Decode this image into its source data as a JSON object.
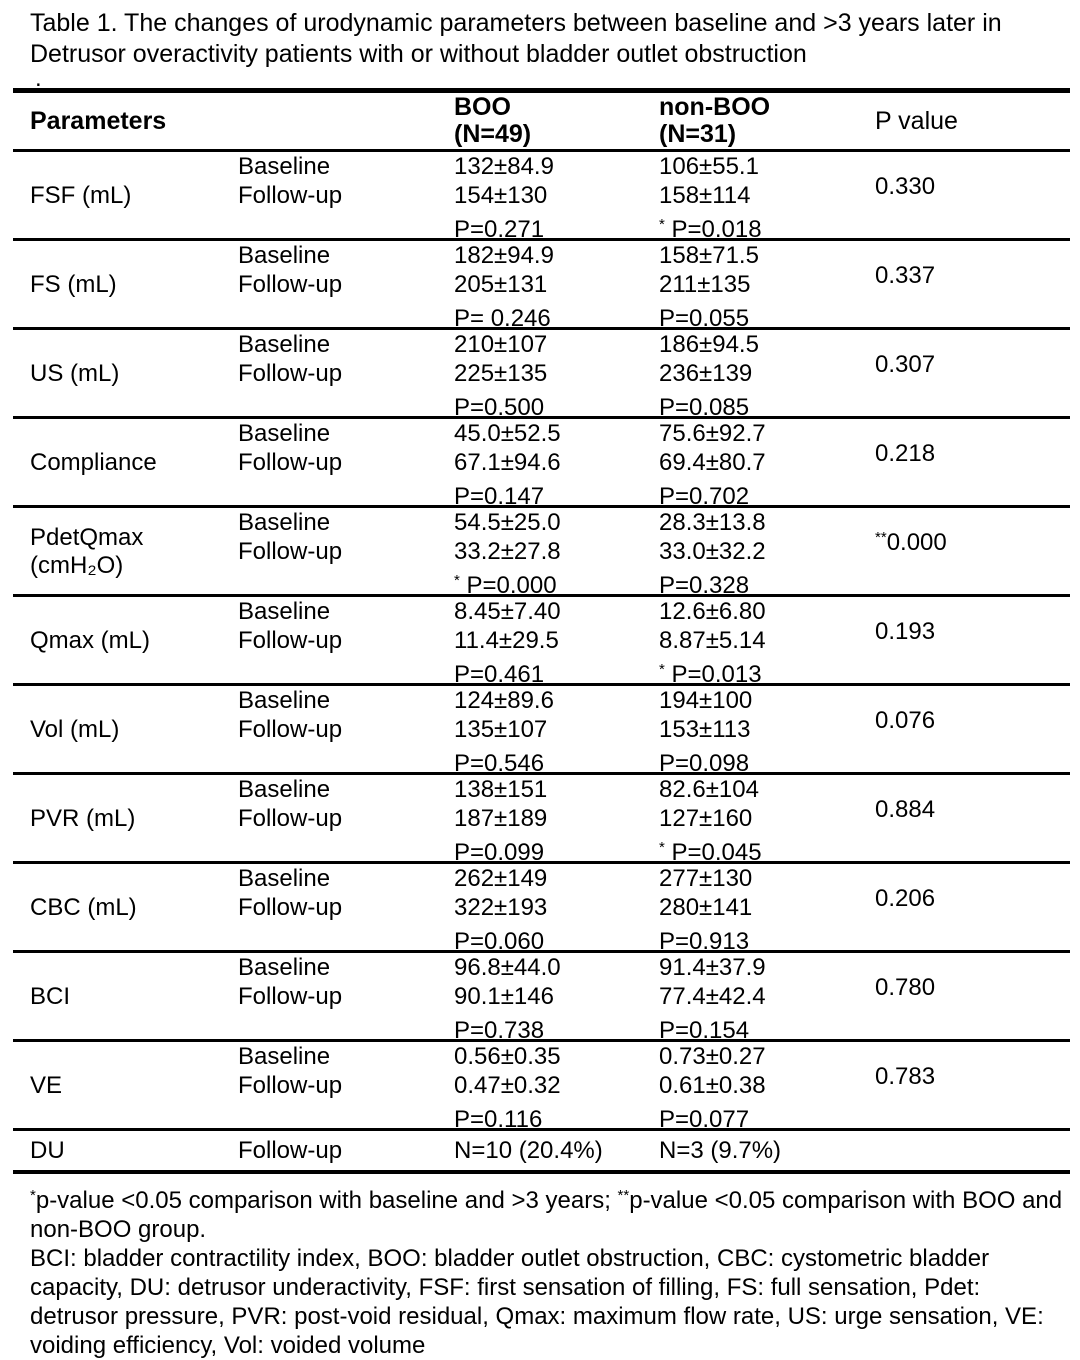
{
  "colors": {
    "text": "#000000",
    "background": "#ffffff"
  },
  "title": {
    "line1": "Table 1. The changes of urodynamic parameters between baseline and >3 years later in",
    "line2": "Detrusor overactivity patients with or without bladder outlet obstruction"
  },
  "misc": {
    "dot": "."
  },
  "table": {
    "header": {
      "parameters": "Parameters",
      "boo1": "BOO",
      "boo2": "(N=49)",
      "nonboo1": "non-BOO",
      "nonboo2": "(N=31)",
      "p": "P value"
    },
    "rows": [
      {
        "param1": "FSF (mL)",
        "param2": "",
        "visit1": "Baseline",
        "visit2": "Follow-up",
        "boo": {
          "l1": "132±84.9",
          "l2": "154±130",
          "psup": "",
          "p": "P=0.271"
        },
        "nonboo": {
          "l1": "106±55.1",
          "l2": "158±114",
          "psup": "*",
          "p": " P=0.018"
        },
        "psup": "",
        "p": "0.330"
      },
      {
        "param1": "FS (mL)",
        "param2": "",
        "visit1": "Baseline",
        "visit2": "Follow-up",
        "boo": {
          "l1": "182±94.9",
          "l2": "205±131",
          "psup": "",
          "p": "P= 0.246"
        },
        "nonboo": {
          "l1": "158±71.5",
          "l2": "211±135",
          "psup": "",
          "p": "P=0.055"
        },
        "psup": "",
        "p": "0.337"
      },
      {
        "param1": "US (mL)",
        "param2": "",
        "visit1": "Baseline",
        "visit2": "Follow-up",
        "boo": {
          "l1": "210±107",
          "l2": "225±135",
          "psup": "",
          "p": "P=0.500"
        },
        "nonboo": {
          "l1": "186±94.5",
          "l2": "236±139",
          "psup": "",
          "p": "P=0.085"
        },
        "psup": "",
        "p": "0.307"
      },
      {
        "param1": "Compliance",
        "param2": "",
        "visit1": "Baseline",
        "visit2": "Follow-up",
        "boo": {
          "l1": "45.0±52.5",
          "l2": "67.1±94.6",
          "psup": "",
          "p": "P=0.147"
        },
        "nonboo": {
          "l1": "75.6±92.7",
          "l2": "69.4±80.7",
          "psup": "",
          "p": "P=0.702"
        },
        "psup": "",
        "p": "0.218"
      },
      {
        "param1": "PdetQmax",
        "param2": "(cmH₂O)",
        "visit1": "Baseline",
        "visit2": "Follow-up",
        "boo": {
          "l1": "54.5±25.0",
          "l2": "33.2±27.8",
          "psup": "*",
          "p": " P=0.000"
        },
        "nonboo": {
          "l1": "28.3±13.8",
          "l2": "33.0±32.2",
          "psup": "",
          "p": "P=0.328"
        },
        "psup": "**",
        "p": "0.000"
      },
      {
        "param1": "Qmax (mL)",
        "param2": "",
        "visit1": "Baseline",
        "visit2": "Follow-up",
        "boo": {
          "l1": "8.45±7.40",
          "l2": "11.4±29.5",
          "psup": "",
          "p": "P=0.461"
        },
        "nonboo": {
          "l1": "12.6±6.80",
          "l2": "8.87±5.14",
          "psup": "*",
          "p": " P=0.013"
        },
        "psup": "",
        "p": "0.193"
      },
      {
        "param1": "Vol (mL)",
        "param2": "",
        "visit1": "Baseline",
        "visit2": "Follow-up",
        "boo": {
          "l1": "124±89.6",
          "l2": "135±107",
          "psup": "",
          "p": "P=0.546"
        },
        "nonboo": {
          "l1": "194±100",
          "l2": "153±113",
          "psup": "",
          "p": "P=0.098"
        },
        "psup": "",
        "p": "0.076"
      },
      {
        "param1": "PVR (mL)",
        "param2": "",
        "visit1": "Baseline",
        "visit2": "Follow-up",
        "boo": {
          "l1": "138±151",
          "l2": "187±189",
          "psup": "",
          "p": "P=0.099"
        },
        "nonboo": {
          "l1": "82.6±104",
          "l2": "127±160",
          "psup": "*",
          "p": " P=0.045"
        },
        "psup": "",
        "p": "0.884"
      },
      {
        "param1": "CBC (mL)",
        "param2": "",
        "visit1": "Baseline",
        "visit2": "Follow-up",
        "boo": {
          "l1": "262±149",
          "l2": "322±193",
          "psup": "",
          "p": "P=0.060"
        },
        "nonboo": {
          "l1": "277±130",
          "l2": "280±141",
          "psup": "",
          "p": "P=0.913"
        },
        "psup": "",
        "p": "0.206"
      },
      {
        "param1": "BCI",
        "param2": "",
        "visit1": "Baseline",
        "visit2": "Follow-up",
        "boo": {
          "l1": "96.8±44.0",
          "l2": "90.1±146",
          "psup": "",
          "p": "P=0.738"
        },
        "nonboo": {
          "l1": "91.4±37.9",
          "l2": "77.4±42.4",
          "psup": "",
          "p": "P=0.154"
        },
        "psup": "",
        "p": "0.780"
      },
      {
        "param1": "VE",
        "param2": "",
        "visit1": "Baseline",
        "visit2": "Follow-up",
        "boo": {
          "l1": "0.56±0.35",
          "l2": "0.47±0.32",
          "psup": "",
          "p": "P=0.116"
        },
        "nonboo": {
          "l1": "0.73±0.27",
          "l2": "0.61±0.38",
          "psup": "",
          "p": "P=0.077"
        },
        "psup": "",
        "p": "0.783"
      }
    ],
    "du": {
      "param": "DU",
      "visit": "Follow-up",
      "boo": "N=10 (20.4%)",
      "nonboo": "N=3 (9.7%)",
      "p": ""
    }
  },
  "notes": {
    "sig_sup1": "*",
    "sig_text1": "p-value <0.05 comparison with baseline and >3 years; ",
    "sig_sup2": "**",
    "sig_text2": "p-value <0.05 comparison with BOO and non-BOO group.",
    "abbrev": "BCI: bladder contractility index, BOO: bladder outlet obstruction, CBC: cystometric bladder capacity, DU: detrusor underactivity, FSF: first sensation of filling, FS: full sensation, Pdet: detrusor pressure, PVR: post-void residual, Qmax: maximum flow rate, US: urge sensation, VE: voiding efficiency, Vol: voided volume"
  }
}
